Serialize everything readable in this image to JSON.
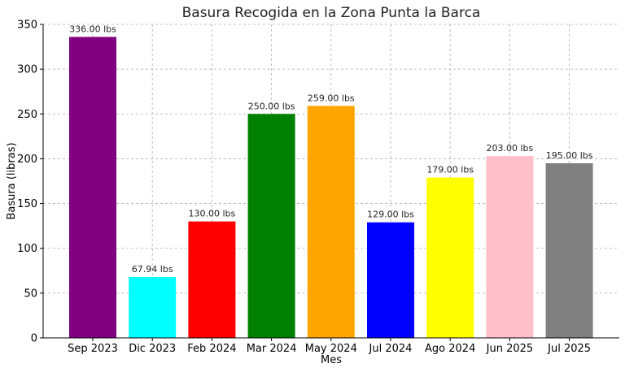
{
  "chart_data": {
    "type": "bar",
    "title": "Basura Recogida en la Zona Punta la Barca",
    "xlabel": "Mes",
    "ylabel": "Basura (libras)",
    "categories": [
      "Sep 2023",
      "Dic 2023",
      "Feb 2024",
      "Mar 2024",
      "May 2024",
      "Jul 2024",
      "Ago 2024",
      "Jun 2025",
      "Jul 2025"
    ],
    "values": [
      336.0,
      67.94,
      130.0,
      250.0,
      259.0,
      129.0,
      179.0,
      203.0,
      195.0
    ],
    "data_labels": [
      "336.00 lbs",
      "67.94 lbs",
      "130.00 lbs",
      "250.00 lbs",
      "259.00 lbs",
      "129.00 lbs",
      "179.00 lbs",
      "203.00 lbs",
      "195.00 lbs"
    ],
    "colors": [
      "#800080",
      "#00ffff",
      "#ff0000",
      "#008000",
      "#ffa500",
      "#0000ff",
      "#ffff00",
      "#ffc0cb",
      "#808080"
    ],
    "ylim": [
      0,
      350
    ],
    "yticks": [
      0,
      50,
      100,
      150,
      200,
      250,
      300,
      350
    ],
    "grid": true
  }
}
